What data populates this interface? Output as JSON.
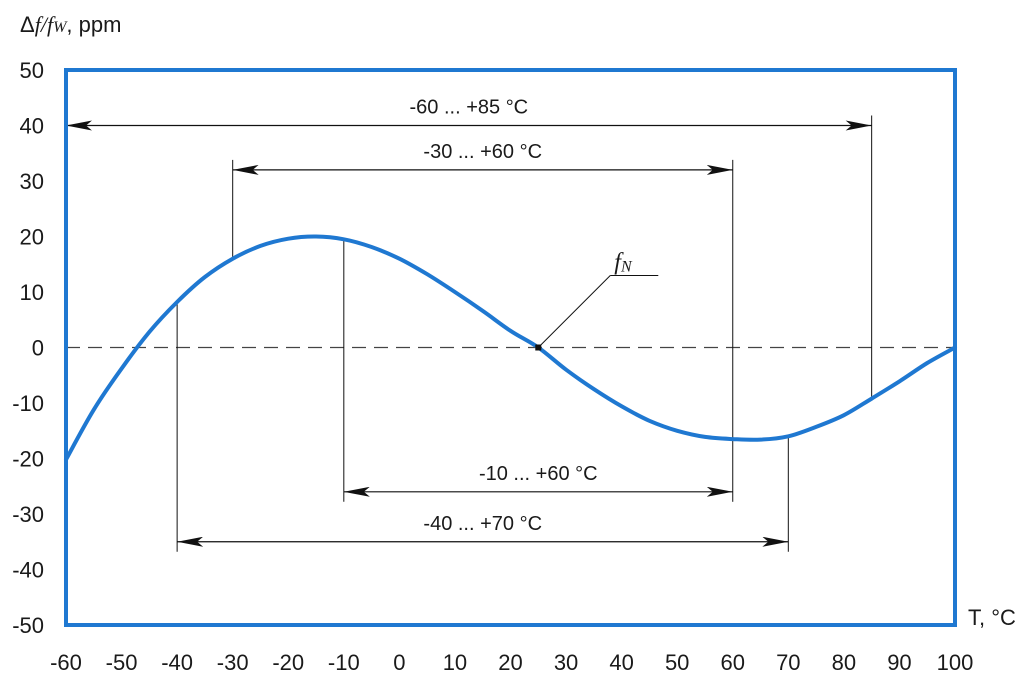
{
  "chart_data": {
    "type": "line",
    "ylabel": {
      "symbol": "Δ",
      "f": "f",
      "slash": "/",
      "fw": "f",
      "sub": "W",
      "unit": ", ppm"
    },
    "xlabel": "T, °C",
    "xlim": [
      -60,
      100
    ],
    "ylim": [
      -50,
      50
    ],
    "x_ticks": [
      "-60",
      "-50",
      "-40",
      "-30",
      "-20",
      "-10",
      "0",
      "10",
      "20",
      "30",
      "40",
      "50",
      "60",
      "70",
      "80",
      "90",
      "100"
    ],
    "y_ticks": [
      "50",
      "40",
      "30",
      "20",
      "10",
      "0",
      "-10",
      "-20",
      "-30",
      "-40",
      "-50"
    ],
    "series": [
      {
        "color": "#1f78d1",
        "x": [
          -60,
          -55,
          -50,
          -45,
          -40,
          -35,
          -30,
          -25,
          -20,
          -15,
          -10,
          -5,
          0,
          5,
          10,
          15,
          20,
          25,
          30,
          35,
          40,
          45,
          50,
          55,
          60,
          65,
          70,
          75,
          80,
          85,
          90,
          95,
          100
        ],
        "y": [
          -20.2,
          -11.2,
          -3.8,
          2.8,
          8.2,
          12.7,
          16.0,
          18.3,
          19.6,
          20.0,
          19.5,
          18.1,
          16.0,
          13.2,
          10.0,
          6.6,
          3.0,
          0.0,
          -4.0,
          -7.5,
          -10.6,
          -13.2,
          -15.0,
          -16.1,
          -16.5,
          -16.6,
          -16.0,
          -14.3,
          -12.2,
          -9.2,
          -6.1,
          -2.8,
          0.0
        ]
      }
    ],
    "reference_point": {
      "label_main": "f",
      "label_sub": "N",
      "x": 25,
      "y": 0
    },
    "zero_line": "dashed",
    "ranges": [
      {
        "label": "-60 ... +85 °C",
        "from": -60,
        "to": 85,
        "y": 40
      },
      {
        "label": "-30 ... +60 °C",
        "from": -30,
        "to": 60,
        "y": 32
      },
      {
        "label": "-10 ... +60 °C",
        "from": -10,
        "to": 60,
        "y": -26
      },
      {
        "label": "-40 ... +70 °C",
        "from": -40,
        "to": 70,
        "y": -35
      }
    ],
    "frame_color": "#1f78d1",
    "grid": false,
    "legend": "none"
  }
}
